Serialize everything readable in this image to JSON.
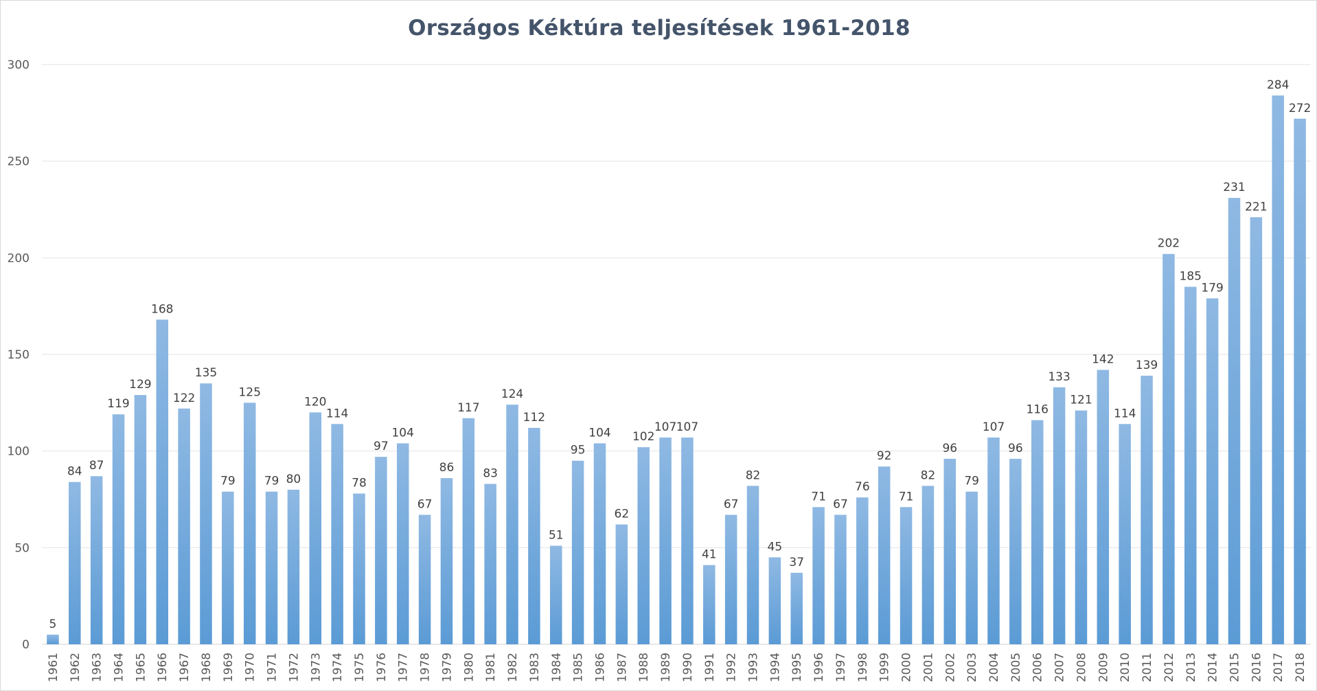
{
  "chart_data": {
    "type": "bar",
    "title": "Országos  Kéktúra teljesítések 1961-2018",
    "xlabel": "",
    "ylabel": "",
    "ylim": [
      0,
      300
    ],
    "yticks": [
      0,
      50,
      100,
      150,
      200,
      250,
      300
    ],
    "grid": true,
    "legend": "none",
    "bar_color": "#5b9bd5",
    "bar_color_light": "#8fb9e3",
    "grid_color": "#e3e3e3",
    "categories": [
      "1961",
      "1962",
      "1963",
      "1964",
      "1965",
      "1966",
      "1967",
      "1968",
      "1969",
      "1970",
      "1971",
      "1972",
      "1973",
      "1974",
      "1975",
      "1976",
      "1977",
      "1978",
      "1979",
      "1980",
      "1981",
      "1982",
      "1983",
      "1984",
      "1985",
      "1986",
      "1987",
      "1988",
      "1989",
      "1990",
      "1991",
      "1992",
      "1993",
      "1994",
      "1995",
      "1996",
      "1997",
      "1998",
      "1999",
      "2000",
      "2001",
      "2002",
      "2003",
      "2004",
      "2005",
      "2006",
      "2007",
      "2008",
      "2009",
      "2010",
      "2011",
      "2012",
      "2013",
      "2014",
      "2015",
      "2016",
      "2017",
      "2018"
    ],
    "values": [
      5,
      84,
      87,
      119,
      129,
      168,
      122,
      135,
      79,
      125,
      79,
      80,
      120,
      114,
      78,
      97,
      104,
      67,
      86,
      117,
      83,
      124,
      112,
      51,
      95,
      104,
      62,
      102,
      107,
      107,
      41,
      67,
      82,
      45,
      37,
      71,
      67,
      76,
      92,
      71,
      82,
      96,
      79,
      107,
      96,
      116,
      133,
      121,
      142,
      114,
      139,
      202,
      185,
      179,
      231,
      221,
      284,
      272
    ]
  }
}
